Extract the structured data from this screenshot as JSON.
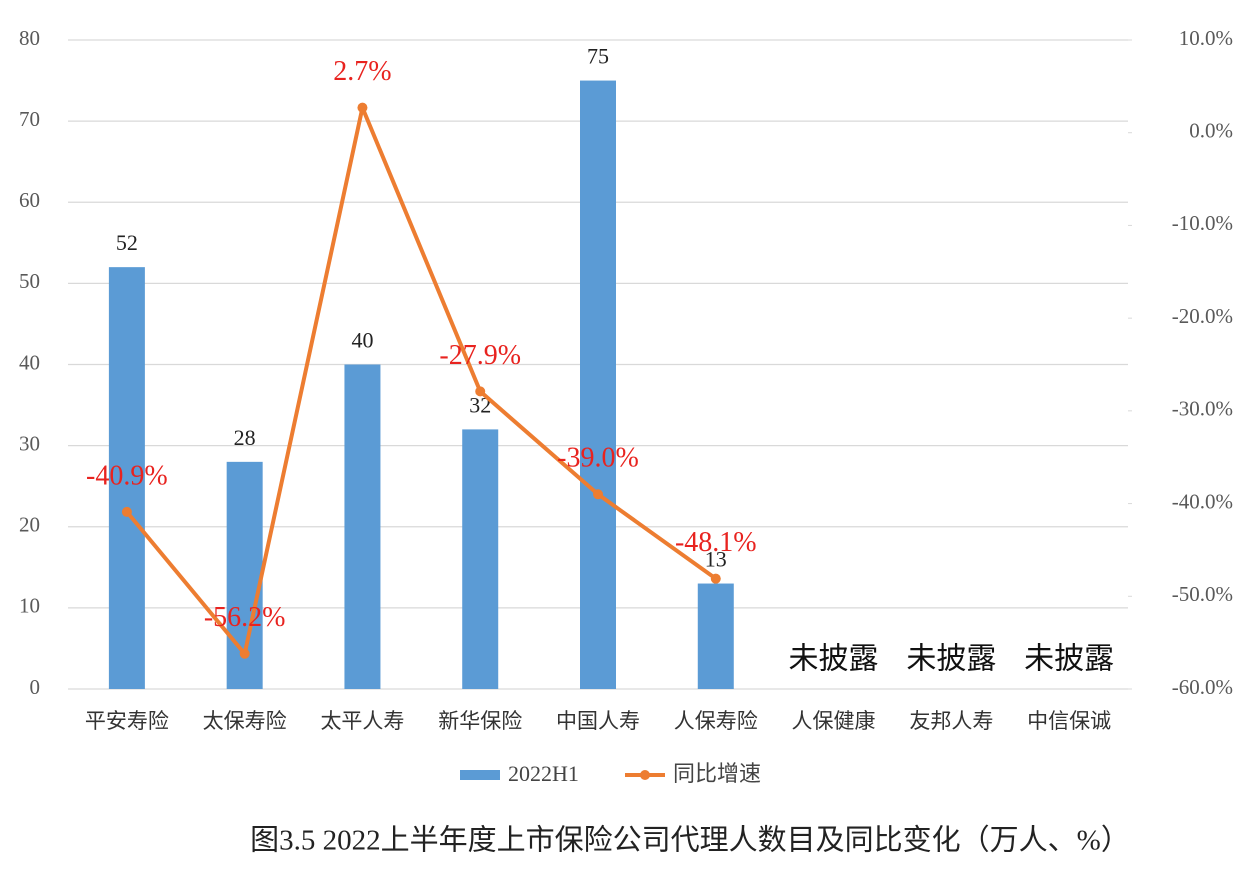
{
  "chart_data": {
    "type": "bar-line",
    "title": "图3.5 2022上半年度上市保险公司代理人数目及同比变化（万人、%）",
    "categories": [
      "平安寿险",
      "太保寿险",
      "太平人寿",
      "新华保险",
      "中国人寿",
      "人保寿险",
      "人保健康",
      "友邦人寿",
      "中信保诚"
    ],
    "series": [
      {
        "name": "2022H1",
        "type": "bar",
        "color": "#5b9bd5",
        "values": [
          52,
          28,
          40,
          32,
          75,
          13,
          null,
          null,
          null
        ]
      },
      {
        "name": "同比增速",
        "type": "line",
        "axis": "y2",
        "color": "#ed7d31",
        "label_color": "#e8231f",
        "values": [
          -40.9,
          -56.2,
          2.7,
          -27.9,
          -39.0,
          -48.1,
          null,
          null,
          null
        ],
        "value_labels": [
          "-40.9%",
          "-56.2%",
          "2.7%",
          "-27.9%",
          "-39.0%",
          "-48.1%",
          null,
          null,
          null
        ]
      }
    ],
    "annotations": [
      null,
      null,
      null,
      null,
      null,
      null,
      "未披露",
      "未披露",
      "未披露"
    ],
    "ylim": [
      0,
      80
    ],
    "yticks": [
      0,
      10,
      20,
      30,
      40,
      50,
      60,
      70,
      80
    ],
    "y2lim": [
      -60,
      10
    ],
    "y2ticks": [
      {
        "value": -60,
        "label": "-60.0%"
      },
      {
        "value": -50,
        "label": "-50.0%"
      },
      {
        "value": -40,
        "label": "-40.0%"
      },
      {
        "value": -30,
        "label": "-30.0%"
      },
      {
        "value": -20,
        "label": "-20.0%"
      },
      {
        "value": -10,
        "label": "-10.0%"
      },
      {
        "value": 0,
        "label": "0.0%"
      },
      {
        "value": 10,
        "label": "10.0%"
      }
    ],
    "grid": true,
    "legend": "bottom"
  }
}
